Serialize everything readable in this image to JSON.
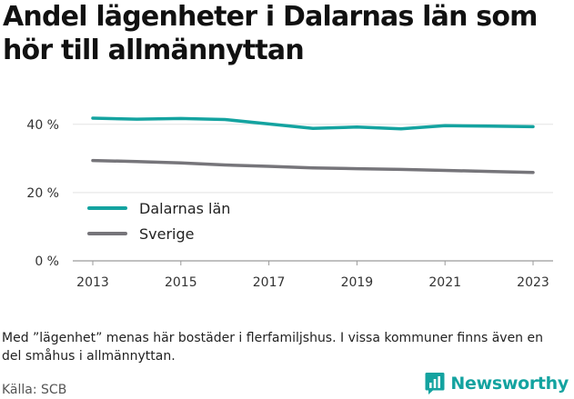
{
  "title": "Andel lägenheter i Dalarnas län som hör till allmännyttan",
  "note": "Med ”lägenhet” menas här bostäder i flerfamiljshus. I vissa kommuner finns även en del småhus i allmännyttan.",
  "source": "Källa: SCB",
  "brand": {
    "name": "Newsworthy",
    "icon": "newsworthy-logo-icon"
  },
  "colors": {
    "dalarna": "#14a3a0",
    "sverige": "#76757a",
    "grid": "#e3e3e3",
    "brand": "#14a3a0"
  },
  "chart_data": {
    "type": "line",
    "x": [
      2013,
      2014,
      2015,
      2016,
      2017,
      2018,
      2019,
      2020,
      2021,
      2022,
      2023
    ],
    "series": [
      {
        "name": "Dalarnas län",
        "values": [
          41.8,
          41.5,
          41.7,
          41.4,
          40.1,
          38.8,
          39.2,
          38.7,
          39.6,
          39.5,
          39.3
        ]
      },
      {
        "name": "Sverige",
        "values": [
          29.4,
          29.1,
          28.7,
          28.1,
          27.7,
          27.2,
          27.0,
          26.8,
          26.5,
          26.2,
          25.9
        ]
      }
    ],
    "xticks": [
      "2013",
      "2015",
      "2017",
      "2019",
      "2021",
      "2023"
    ],
    "yticks": [
      "0 %",
      "20 %",
      "40 %"
    ],
    "ytick_values": [
      0,
      20,
      40
    ],
    "ylim": [
      0,
      45
    ],
    "xlabel": "",
    "ylabel": "",
    "grid": "horizontal",
    "legend_position": "inside-left"
  }
}
